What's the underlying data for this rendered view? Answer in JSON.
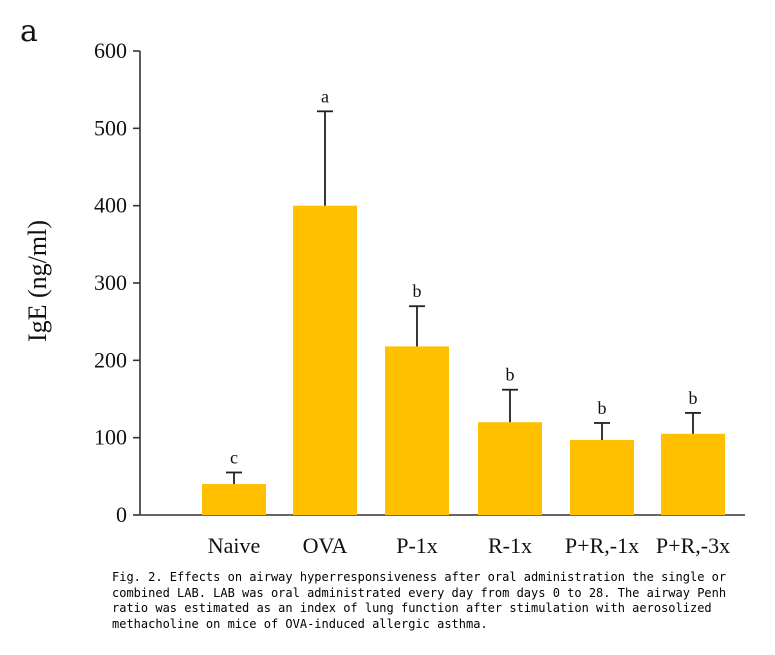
{
  "panel_label": "a",
  "chart_data": {
    "type": "bar",
    "ylabel": "IgE (ng/ml)",
    "ylim": [
      0,
      600
    ],
    "yticks": [
      0,
      100,
      200,
      300,
      400,
      500,
      600
    ],
    "categories": [
      "Naive",
      "OVA",
      "P-1x",
      "R-1x",
      "P+R,-1x",
      "P+R,-3x"
    ],
    "values": [
      40,
      400,
      218,
      120,
      97,
      105
    ],
    "errors": [
      15,
      122,
      52,
      42,
      22,
      27
    ],
    "significance": [
      "c",
      "a",
      "b",
      "b",
      "b",
      "b"
    ],
    "bar_color": "#FFC000",
    "grid": false
  },
  "caption": "Fig. 2. Effects on airway hyperresponsiveness after oral administration the single or combined LAB. LAB was oral administrated every day from days 0 to 28. The airway Penh ratio was  estimated as an index of lung function after stimulation with aerosolized methacholine on  mice of OVA-induced allergic asthma."
}
